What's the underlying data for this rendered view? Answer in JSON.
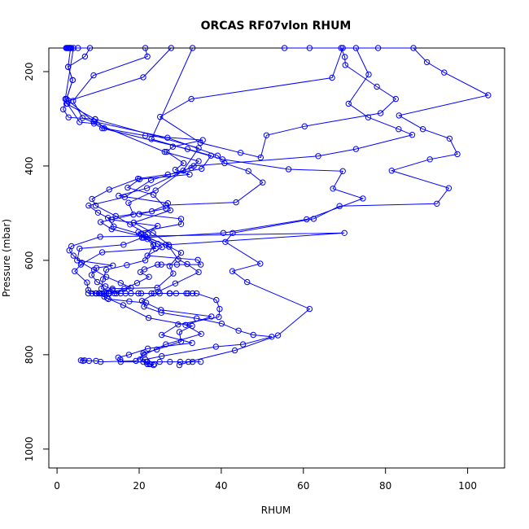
{
  "chart_data": {
    "type": "scatter",
    "title": "ORCAS RF07vlon RHUM",
    "xlabel": "RHUM",
    "ylabel": "Pressure (mbar)",
    "xlim": [
      -2,
      109
    ],
    "ylim": [
      1040,
      150
    ],
    "y_inverted": true,
    "x_ticks": [
      0,
      20,
      40,
      60,
      80,
      100
    ],
    "y_ticks": [
      200,
      400,
      600,
      800,
      1000
    ],
    "grid": false,
    "legend": "none",
    "marker": "open-circle",
    "connected": true,
    "color": "#0000ff",
    "series": [
      {
        "points": [
          [
            2.2,
            150
          ],
          [
            2.6,
            150
          ],
          [
            3.1,
            150
          ],
          [
            3.3,
            150
          ],
          [
            2.7,
            190
          ],
          [
            3.8,
            218
          ],
          [
            2.3,
            258
          ],
          [
            1.5,
            280
          ],
          [
            2.8,
            297
          ],
          [
            9.3,
            301
          ],
          [
            11.5,
            320
          ],
          [
            21.5,
            336
          ],
          [
            35.5,
            345
          ],
          [
            28.2,
            359
          ],
          [
            26.7,
            370
          ],
          [
            30.8,
            394
          ],
          [
            28.8,
            408
          ],
          [
            32.3,
            418
          ],
          [
            20.1,
            428
          ],
          [
            17.2,
            446
          ],
          [
            23.5,
            461
          ],
          [
            26.5,
            490
          ],
          [
            20.0,
            502
          ],
          [
            30.2,
            512
          ],
          [
            30.2,
            523
          ],
          [
            19.8,
            540
          ],
          [
            21.1,
            552
          ],
          [
            24.5,
            565
          ],
          [
            25.6,
            572
          ],
          [
            22.0,
            590
          ],
          [
            34.3,
            599
          ],
          [
            35.0,
            609
          ],
          [
            29.2,
            609
          ],
          [
            25.4,
            609
          ],
          [
            24.5,
            609
          ],
          [
            21.3,
            619
          ],
          [
            20.3,
            625
          ],
          [
            22.4,
            635
          ],
          [
            19.5,
            648
          ],
          [
            16.4,
            660
          ],
          [
            12.8,
            670
          ],
          [
            12.0,
            670
          ],
          [
            11.0,
            670
          ],
          [
            10.2,
            670
          ],
          [
            9.6,
            670
          ],
          [
            12.2,
            680
          ],
          [
            16.1,
            695
          ],
          [
            22.3,
            722
          ],
          [
            32.9,
            739
          ],
          [
            29.8,
            752
          ],
          [
            30.2,
            772
          ],
          [
            24.3,
            789
          ],
          [
            21.0,
            797
          ],
          [
            20.2,
            810
          ],
          [
            21.8,
            815
          ],
          [
            22.0,
            820
          ],
          [
            22.5,
            820
          ],
          [
            23.7,
            820
          ]
        ]
      },
      {
        "points": [
          [
            2.4,
            150
          ],
          [
            5.1,
            150
          ],
          [
            8.0,
            150
          ],
          [
            6.8,
            168
          ],
          [
            2.7,
            190
          ],
          [
            3.8,
            218
          ],
          [
            2.3,
            258
          ],
          [
            2.3,
            268
          ],
          [
            9.3,
            301
          ],
          [
            34.5,
            362
          ],
          [
            30.7,
            410
          ],
          [
            24.0,
            452
          ],
          [
            17.4,
            478
          ],
          [
            18.6,
            503
          ],
          [
            10.6,
            519
          ],
          [
            13.3,
            534
          ],
          [
            21.7,
            551
          ],
          [
            26.5,
            567
          ],
          [
            30.2,
            584
          ],
          [
            27.4,
            612
          ],
          [
            28.3,
            628
          ],
          [
            24.4,
            658
          ],
          [
            13.5,
            660
          ],
          [
            9.4,
            670
          ],
          [
            7.6,
            670
          ],
          [
            8.5,
            670
          ],
          [
            11.5,
            670
          ],
          [
            12.5,
            670
          ],
          [
            16.7,
            670
          ],
          [
            19.8,
            670
          ],
          [
            23.6,
            670
          ],
          [
            27.4,
            670
          ],
          [
            31.9,
            670
          ],
          [
            34.0,
            670
          ],
          [
            38.8,
            684
          ],
          [
            39.6,
            703
          ],
          [
            39.4,
            720
          ],
          [
            29.5,
            736
          ],
          [
            25.5,
            758
          ],
          [
            32.9,
            775
          ],
          [
            22.1,
            787
          ],
          [
            17.5,
            800
          ],
          [
            14.9,
            806
          ],
          [
            15.4,
            810
          ],
          [
            15.5,
            815
          ],
          [
            22.0,
            815
          ],
          [
            25.0,
            815
          ],
          [
            27.5,
            815
          ],
          [
            30.0,
            815
          ],
          [
            33.0,
            815
          ],
          [
            35.0,
            815
          ]
        ]
      },
      {
        "points": [
          [
            21.5,
            150
          ],
          [
            22.0,
            168
          ],
          [
            8.9,
            208
          ],
          [
            3.9,
            262
          ],
          [
            6.2,
            298
          ],
          [
            26.2,
            370
          ],
          [
            34.5,
            390
          ],
          [
            32.7,
            404
          ],
          [
            22.9,
            430
          ],
          [
            16.5,
            466
          ],
          [
            7.7,
            484
          ],
          [
            10.0,
            499
          ],
          [
            13.3,
            514
          ],
          [
            24.5,
            527
          ],
          [
            20.5,
            545
          ],
          [
            27.3,
            571
          ],
          [
            29.5,
            598
          ],
          [
            31.7,
            608
          ],
          [
            34.5,
            625
          ],
          [
            28.8,
            649
          ],
          [
            24.7,
            666
          ],
          [
            20.7,
            686
          ],
          [
            25.3,
            705
          ],
          [
            37.6,
            719
          ],
          [
            31.3,
            737
          ],
          [
            35.1,
            756
          ],
          [
            26.5,
            778
          ],
          [
            21.2,
            800
          ],
          [
            19.2,
            813
          ],
          [
            10.6,
            815
          ],
          [
            9.5,
            813
          ],
          [
            7.8,
            813
          ],
          [
            6.3,
            813
          ],
          [
            5.8,
            812
          ],
          [
            6.7,
            812
          ]
        ]
      },
      {
        "points": [
          [
            27.8,
            150
          ],
          [
            21.0,
            212
          ],
          [
            2.8,
            262
          ],
          [
            8.9,
            306
          ],
          [
            26.9,
            340
          ],
          [
            39.1,
            378
          ],
          [
            40.8,
            394
          ],
          [
            46.6,
            411
          ],
          [
            50.1,
            435
          ],
          [
            43.6,
            477
          ],
          [
            26.6,
            483
          ],
          [
            23.1,
            496
          ],
          [
            12.4,
            510
          ],
          [
            13.8,
            528
          ],
          [
            20.5,
            545
          ],
          [
            22.0,
            555
          ],
          [
            24.0,
            575
          ],
          [
            11.0,
            583
          ],
          [
            5.8,
            609
          ],
          [
            4.3,
            623
          ],
          [
            7.3,
            647
          ],
          [
            7.6,
            663
          ],
          [
            11.5,
            677
          ],
          [
            12.5,
            682
          ],
          [
            17.6,
            687
          ],
          [
            21.7,
            690
          ],
          [
            21.2,
            698
          ],
          [
            25.4,
            711
          ],
          [
            34.0,
            723
          ],
          [
            40.1,
            734
          ],
          [
            44.2,
            749
          ],
          [
            47.8,
            758
          ],
          [
            52.3,
            762
          ],
          [
            45.3,
            778
          ],
          [
            38.7,
            783
          ],
          [
            25.5,
            803
          ],
          [
            21.5,
            810
          ],
          [
            21.0,
            815
          ],
          [
            22.8,
            820
          ],
          [
            23.5,
            822
          ]
        ]
      },
      {
        "points": [
          [
            55.4,
            150
          ],
          [
            61.5,
            150
          ],
          [
            69.6,
            150
          ],
          [
            67.0,
            213
          ],
          [
            32.7,
            258
          ],
          [
            25.1,
            296
          ],
          [
            34.9,
            351
          ],
          [
            44.7,
            372
          ],
          [
            49.6,
            382
          ],
          [
            51.0,
            335
          ],
          [
            60.3,
            316
          ],
          [
            78.8,
            288
          ],
          [
            82.5,
            258
          ],
          [
            77.9,
            232
          ],
          [
            70.2,
            186
          ],
          [
            70.1,
            169
          ],
          [
            69.2,
            150
          ],
          [
            78.2,
            150
          ],
          [
            86.8,
            150
          ],
          [
            90.1,
            180
          ],
          [
            94.3,
            202
          ],
          [
            105.0,
            250
          ],
          [
            83.3,
            293
          ],
          [
            89.1,
            322
          ],
          [
            95.6,
            342
          ],
          [
            97.5,
            375
          ],
          [
            90.8,
            386
          ],
          [
            81.5,
            410
          ],
          [
            95.4,
            447
          ],
          [
            92.5,
            480
          ],
          [
            68.8,
            485
          ],
          [
            62.5,
            512
          ],
          [
            42.8,
            542
          ],
          [
            41.0,
            561
          ],
          [
            49.5,
            607
          ],
          [
            42.7,
            623
          ],
          [
            46.3,
            646
          ],
          [
            61.5,
            703
          ],
          [
            53.8,
            759
          ],
          [
            43.3,
            791
          ],
          [
            32.0,
            815
          ],
          [
            29.8,
            822
          ]
        ]
      },
      {
        "points": [
          [
            33.0,
            150
          ],
          [
            23.0,
            343
          ],
          [
            40.3,
            386
          ],
          [
            56.4,
            407
          ],
          [
            69.6,
            411
          ],
          [
            67.2,
            448
          ],
          [
            74.5,
            469
          ],
          [
            60.8,
            513
          ],
          [
            40.5,
            542
          ],
          [
            20.7,
            552
          ],
          [
            16.2,
            567
          ],
          [
            5.5,
            575
          ],
          [
            4.9,
            600
          ],
          [
            13.6,
            611
          ],
          [
            9.6,
            616
          ],
          [
            8.4,
            631
          ],
          [
            9.8,
            646
          ],
          [
            11.8,
            655
          ],
          [
            13.5,
            663
          ],
          [
            11.5,
            670
          ],
          [
            14.5,
            670
          ]
        ]
      },
      {
        "points": [
          [
            72.8,
            150
          ],
          [
            75.9,
            206
          ],
          [
            71.0,
            268
          ],
          [
            75.8,
            297
          ],
          [
            83.2,
            322
          ],
          [
            86.5,
            334
          ],
          [
            72.8,
            364
          ],
          [
            63.6,
            379
          ],
          [
            33.3,
            400
          ],
          [
            21.9,
            447
          ],
          [
            15.0,
            463
          ],
          [
            27.0,
            479
          ],
          [
            27.6,
            494
          ],
          [
            18.7,
            520
          ],
          [
            23.4,
            542
          ],
          [
            27.2,
            567
          ],
          [
            70.0,
            542
          ],
          [
            10.5,
            550
          ],
          [
            3.5,
            570
          ],
          [
            3.0,
            579
          ],
          [
            4.0,
            590
          ],
          [
            6.0,
            605
          ],
          [
            9.0,
            620
          ],
          [
            12.0,
            635
          ],
          [
            15.5,
            648
          ],
          [
            18.0,
            658
          ],
          [
            14.0,
            670
          ],
          [
            10.5,
            670
          ]
        ]
      },
      {
        "points": [
          [
            2.8,
            150
          ],
          [
            3.0,
            150
          ],
          [
            3.5,
            150
          ],
          [
            4.0,
            150
          ],
          [
            2.0,
            258
          ],
          [
            2.5,
            268
          ],
          [
            5.5,
            307
          ],
          [
            9.0,
            310
          ],
          [
            11.0,
            320
          ],
          [
            31.8,
            364
          ],
          [
            37.5,
            378
          ],
          [
            35.2,
            406
          ],
          [
            27.0,
            418
          ],
          [
            19.7,
            427
          ],
          [
            12.7,
            450
          ],
          [
            8.5,
            470
          ],
          [
            9.4,
            484
          ],
          [
            14.3,
            506
          ],
          [
            17.8,
            524
          ],
          [
            22.0,
            545
          ],
          [
            23.5,
            568
          ],
          [
            21.5,
            600
          ],
          [
            17.0,
            610
          ],
          [
            12.0,
            620
          ],
          [
            11.2,
            640
          ],
          [
            10.8,
            660
          ],
          [
            15.5,
            670
          ],
          [
            18.0,
            670
          ],
          [
            20.5,
            670
          ],
          [
            23.0,
            670
          ],
          [
            25.0,
            670
          ],
          [
            27.5,
            670
          ],
          [
            29.0,
            670
          ],
          [
            31.5,
            670
          ],
          [
            33.0,
            670
          ]
        ]
      }
    ]
  }
}
